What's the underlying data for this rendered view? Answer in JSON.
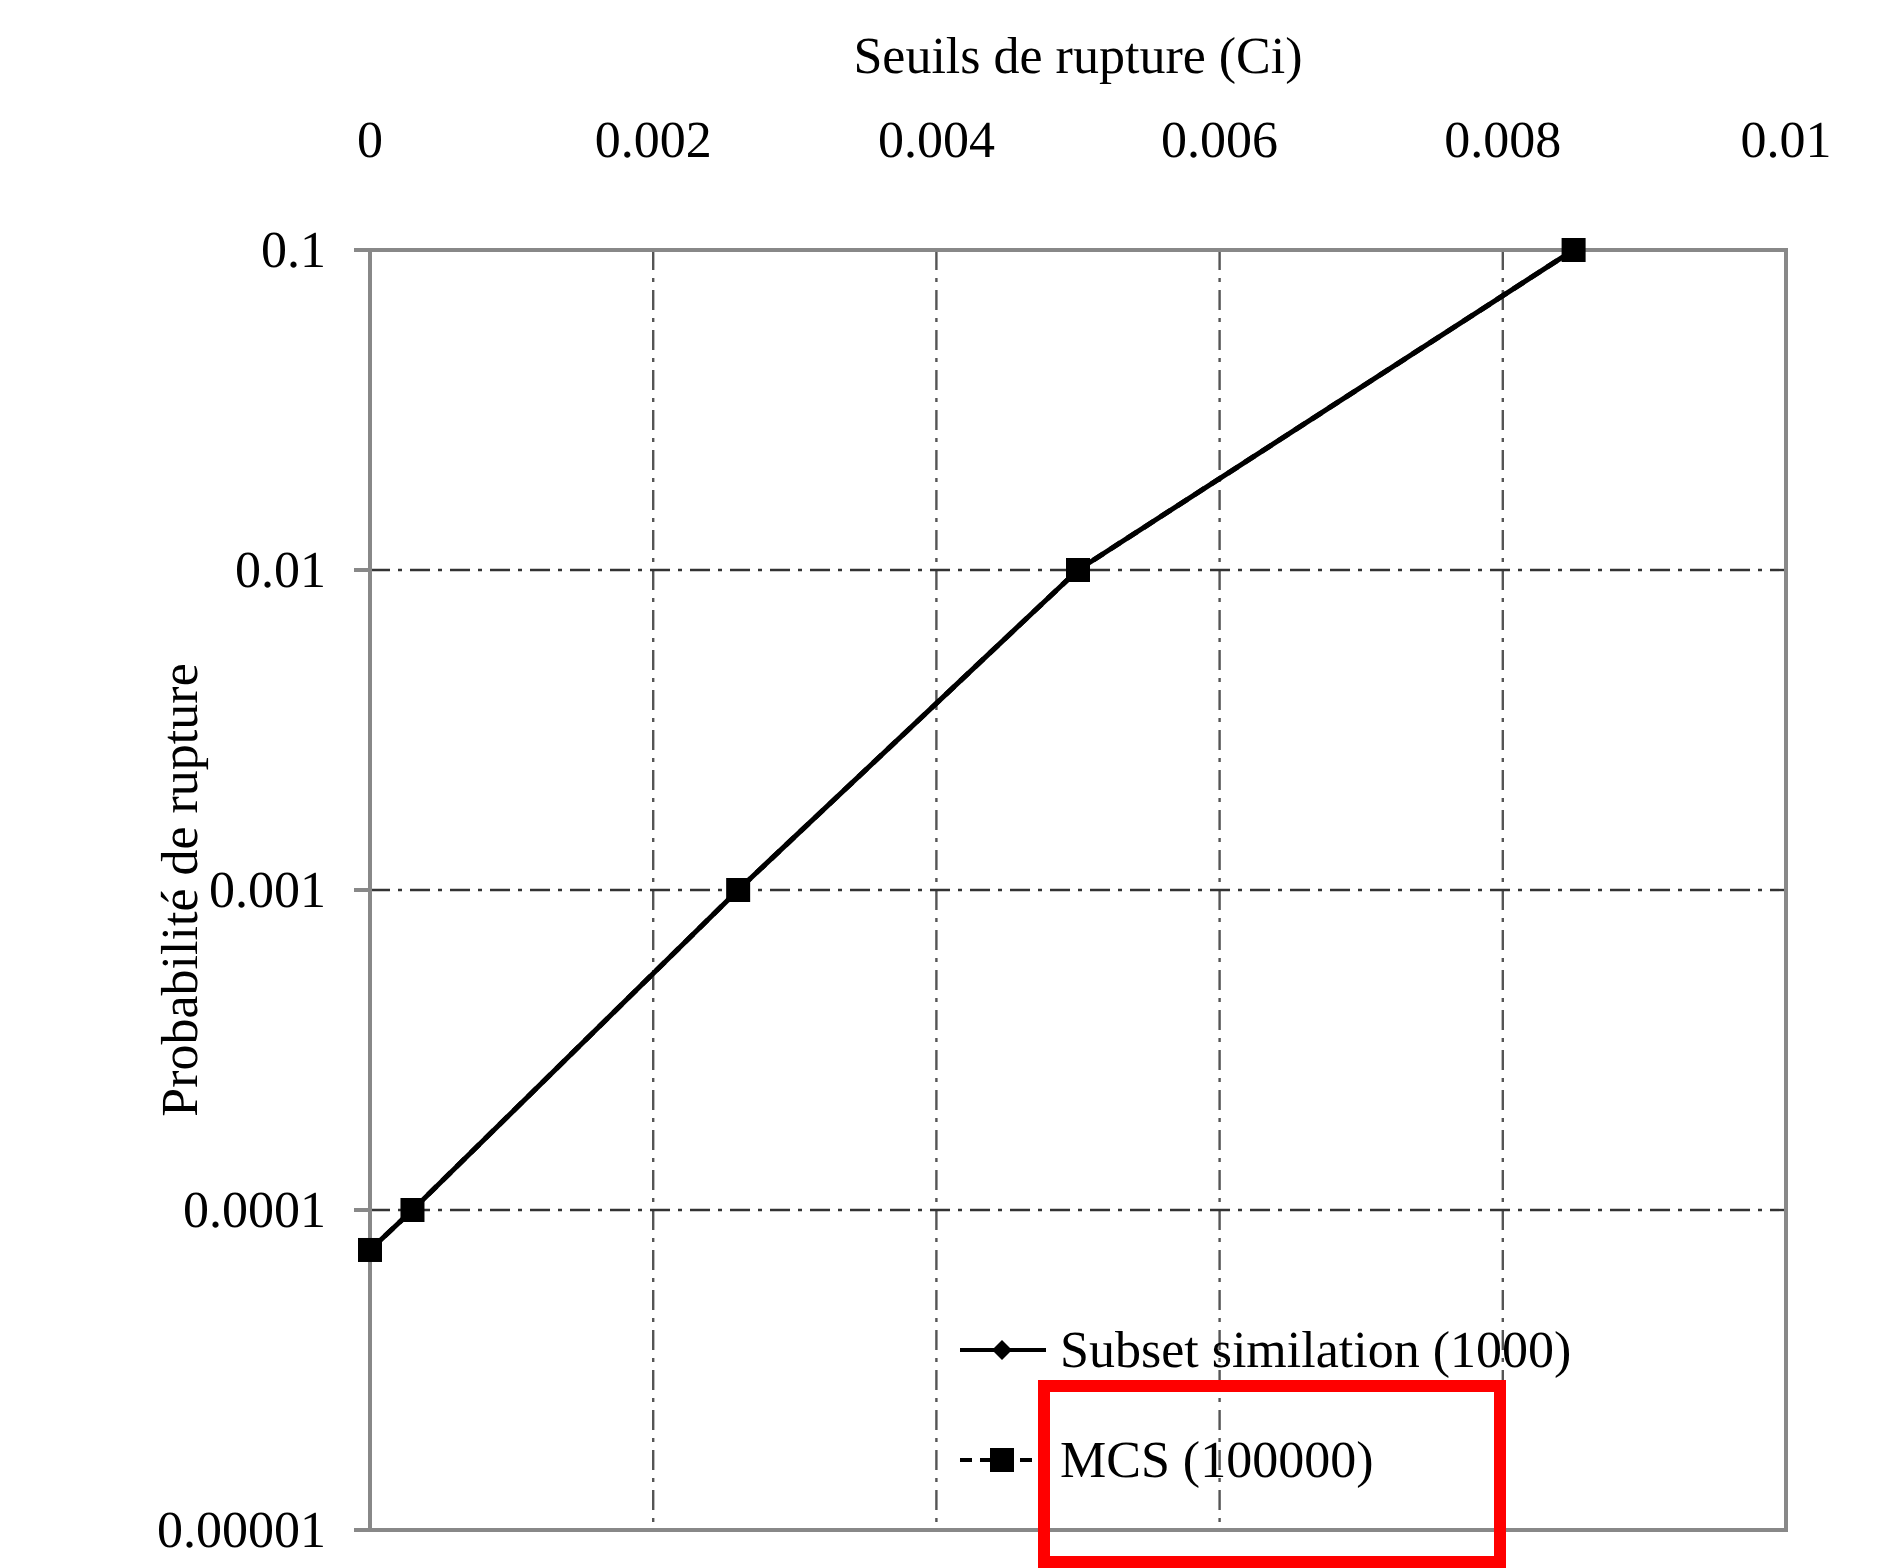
{
  "chart_data": {
    "type": "line",
    "xlabel": "Seuils de rupture  (Ci)",
    "ylabel": "Probabilité de rupture",
    "log": "y",
    "xlim": [
      0,
      0.01
    ],
    "xticks": [
      0,
      0.002,
      0.004,
      0.006,
      0.008,
      0.01
    ],
    "ylim": [
      1e-05,
      0.1
    ],
    "yticks": [
      {
        "value": 1e-05,
        "label": "0.00001"
      },
      0.0001,
      0.001,
      0.01,
      0.1
    ],
    "grid": true,
    "legend": "bottom right",
    "series": [
      {
        "name": "MCS (100000)",
        "color": "#000000",
        "x": [
          0,
          0.0003,
          0.0026,
          0.005,
          0.0085
        ],
        "values": [
          7.5e-05,
          0.0001,
          0.001,
          0.01,
          0.1
        ],
        "marker": "square",
        "line_style": "dashed"
      },
      {
        "name": "Subset similation (1000)",
        "color": "#000000",
        "x": [
          0,
          0.0003,
          0.0026,
          0.005,
          0.0085
        ],
        "values": [
          7.5e-05,
          0.0001,
          0.001,
          0.01,
          0.1
        ],
        "marker": "diamond",
        "line_style": "solid"
      }
    ]
  }
}
